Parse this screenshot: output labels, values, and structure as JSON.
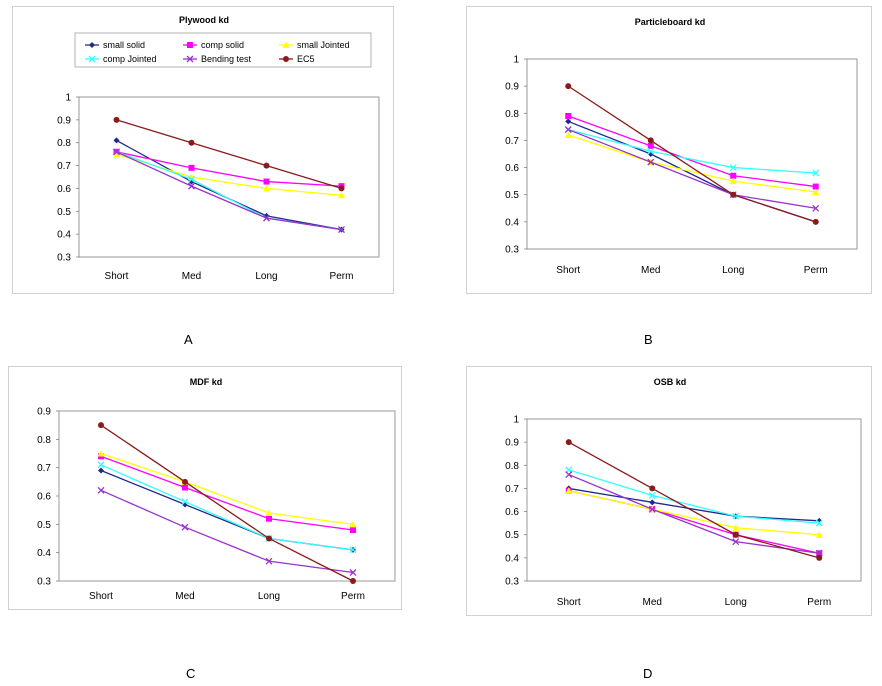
{
  "chart_data": [
    {
      "type": "line",
      "title": "Plywood kd",
      "categories": [
        "Short",
        "Med",
        "Long",
        "Perm"
      ],
      "ylim": [
        0.3,
        1
      ],
      "yticks": [
        "0.3",
        "0.4",
        "0.5",
        "0.6",
        "0.7",
        "0.8",
        "0.9",
        "1"
      ],
      "legend": "top",
      "series": [
        {
          "name": "small solid",
          "color": "#1f2a8c",
          "marker": "diamond",
          "values": [
            0.81,
            0.63,
            0.48,
            0.42
          ]
        },
        {
          "name": "comp solid",
          "color": "#ff00ff",
          "marker": "square",
          "values": [
            0.76,
            0.69,
            0.63,
            0.61
          ]
        },
        {
          "name": "small Jointed",
          "color": "#ffff00",
          "marker": "triangle",
          "values": [
            0.75,
            0.65,
            0.6,
            0.57
          ]
        },
        {
          "name": "comp Jointed",
          "color": "#33ffff",
          "marker": "x",
          "values": [
            0.76,
            0.64,
            0.47,
            0.42
          ]
        },
        {
          "name": "Bending test",
          "color": "#9933cc",
          "marker": "x",
          "values": [
            0.76,
            0.61,
            0.47,
            0.42
          ]
        },
        {
          "name": "EC5",
          "color": "#8b1a1a",
          "marker": "circle",
          "values": [
            0.9,
            0.8,
            0.7,
            0.6
          ]
        }
      ]
    },
    {
      "type": "line",
      "title": "Particleboard kd",
      "categories": [
        "Short",
        "Med",
        "Long",
        "Perm"
      ],
      "ylim": [
        0.3,
        1
      ],
      "yticks": [
        "0.3",
        "0.4",
        "0.5",
        "0.6",
        "0.7",
        "0.8",
        "0.9",
        "1"
      ],
      "series": [
        {
          "color": "#1f2a8c",
          "marker": "diamond",
          "values": [
            0.77,
            0.65,
            0.5,
            0.4
          ]
        },
        {
          "color": "#ff00ff",
          "marker": "square",
          "values": [
            0.79,
            0.68,
            0.57,
            0.53
          ]
        },
        {
          "color": "#ffff00",
          "marker": "triangle",
          "values": [
            0.72,
            0.62,
            0.55,
            0.51
          ]
        },
        {
          "color": "#33ffff",
          "marker": "x",
          "values": [
            0.74,
            0.66,
            0.6,
            0.58
          ]
        },
        {
          "color": "#9933cc",
          "marker": "x",
          "values": [
            0.74,
            0.62,
            0.5,
            0.45
          ]
        },
        {
          "color": "#8b1a1a",
          "marker": "circle",
          "values": [
            0.9,
            0.7,
            0.5,
            0.4
          ]
        }
      ]
    },
    {
      "type": "line",
      "title": "MDF kd",
      "categories": [
        "Short",
        "Med",
        "Long",
        "Perm"
      ],
      "ylim": [
        0.3,
        0.9
      ],
      "yticks": [
        "0.3",
        "0.4",
        "0.5",
        "0.6",
        "0.7",
        "0.8",
        "0.9"
      ],
      "series": [
        {
          "color": "#1f2a8c",
          "marker": "diamond",
          "values": [
            0.69,
            0.57,
            0.45,
            0.41
          ]
        },
        {
          "color": "#ff00ff",
          "marker": "square",
          "values": [
            0.74,
            0.63,
            0.52,
            0.48
          ]
        },
        {
          "color": "#ffff00",
          "marker": "triangle",
          "values": [
            0.75,
            0.65,
            0.54,
            0.5
          ]
        },
        {
          "color": "#33ffff",
          "marker": "x",
          "values": [
            0.71,
            0.58,
            0.45,
            0.41
          ]
        },
        {
          "color": "#9933cc",
          "marker": "x",
          "values": [
            0.62,
            0.49,
            0.37,
            0.33
          ]
        },
        {
          "color": "#8b1a1a",
          "marker": "circle",
          "values": [
            0.85,
            0.65,
            0.45,
            0.3
          ]
        }
      ]
    },
    {
      "type": "line",
      "title": "OSB kd",
      "categories": [
        "Short",
        "Med",
        "Long",
        "Perm"
      ],
      "ylim": [
        0.3,
        1
      ],
      "yticks": [
        "0.3",
        "0.4",
        "0.5",
        "0.6",
        "0.7",
        "0.8",
        "0.9",
        "1"
      ],
      "series": [
        {
          "color": "#1f2a8c",
          "marker": "diamond",
          "values": [
            0.7,
            0.64,
            0.58,
            0.56
          ]
        },
        {
          "color": "#ff00ff",
          "marker": "square",
          "values": [
            0.69,
            0.61,
            0.5,
            0.42
          ]
        },
        {
          "color": "#ffff00",
          "marker": "triangle",
          "values": [
            0.69,
            0.61,
            0.53,
            0.5
          ]
        },
        {
          "color": "#33ffff",
          "marker": "x",
          "values": [
            0.78,
            0.67,
            0.58,
            0.55
          ]
        },
        {
          "color": "#9933cc",
          "marker": "x",
          "values": [
            0.76,
            0.61,
            0.47,
            0.42
          ]
        },
        {
          "color": "#8b1a1a",
          "marker": "circle",
          "values": [
            0.9,
            0.7,
            0.5,
            0.4
          ]
        }
      ]
    }
  ],
  "panel_labels": [
    "A",
    "B",
    "C",
    "D"
  ]
}
